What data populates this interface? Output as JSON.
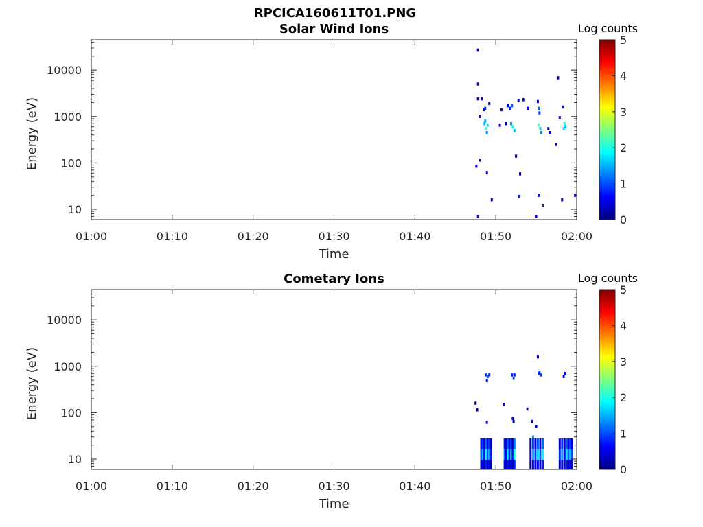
{
  "figure": {
    "title": "RPCICA160611T01.PNG"
  },
  "chart_data": [
    {
      "type": "heatmap",
      "title": "Solar Wind Ions",
      "xlabel": "Time",
      "ylabel": "Energy (eV)",
      "x_ticks": [
        "01:00",
        "01:10",
        "01:20",
        "01:30",
        "01:40",
        "01:50",
        "02:00"
      ],
      "x_range_min": [
        0,
        60
      ],
      "y_scale": "log",
      "y_ticks": [
        "10",
        "100",
        "1000",
        "10000"
      ],
      "y_range": [
        6,
        45000
      ],
      "colorbar": {
        "label": "Log counts",
        "ticks": [
          "0",
          "1",
          "2",
          "3",
          "4",
          "5"
        ],
        "range": [
          0,
          5
        ],
        "colormap": "jet"
      },
      "cells": [
        [
          47.8,
          27000,
          0.3
        ],
        [
          47.8,
          5000,
          0.3
        ],
        [
          47.8,
          2400,
          0.3
        ],
        [
          48.3,
          2400,
          0.3
        ],
        [
          49.2,
          1900,
          0.3
        ],
        [
          48.0,
          1000,
          0.5
        ],
        [
          48.5,
          1400,
          0.6
        ],
        [
          48.7,
          1500,
          0.8
        ],
        [
          48.6,
          700,
          1.6
        ],
        [
          48.8,
          550,
          2.0
        ],
        [
          49.0,
          650,
          1.8
        ],
        [
          48.9,
          450,
          1.2
        ],
        [
          48.7,
          800,
          1.4
        ],
        [
          50.5,
          650,
          0.4
        ],
        [
          50.7,
          1400,
          0.5
        ],
        [
          51.3,
          700,
          0.3
        ],
        [
          51.5,
          1700,
          0.6
        ],
        [
          51.8,
          1500,
          0.8
        ],
        [
          52.0,
          1700,
          1.0
        ],
        [
          52.1,
          600,
          1.9
        ],
        [
          52.3,
          500,
          1.6
        ],
        [
          51.9,
          700,
          1.4
        ],
        [
          52.8,
          2200,
          0.3
        ],
        [
          53.4,
          2300,
          0.3
        ],
        [
          54.0,
          1500,
          0.4
        ],
        [
          55.2,
          2100,
          0.5
        ],
        [
          55.3,
          1500,
          1.1
        ],
        [
          55.4,
          1200,
          1.0
        ],
        [
          55.3,
          650,
          2.2
        ],
        [
          55.5,
          550,
          1.7
        ],
        [
          55.6,
          450,
          1.3
        ],
        [
          56.5,
          550,
          0.4
        ],
        [
          56.7,
          450,
          0.5
        ],
        [
          57.7,
          6800,
          0.3
        ],
        [
          57.9,
          950,
          0.6
        ],
        [
          58.3,
          1600,
          0.7
        ],
        [
          58.5,
          700,
          2.0
        ],
        [
          58.4,
          550,
          1.7
        ],
        [
          58.6,
          600,
          1.5
        ],
        [
          57.5,
          250,
          0.3
        ],
        [
          47.6,
          85,
          0.4
        ],
        [
          48.0,
          115,
          0.3
        ],
        [
          48.9,
          62,
          0.3
        ],
        [
          52.5,
          140,
          0.3
        ],
        [
          53.0,
          58,
          0.3
        ],
        [
          49.5,
          16,
          0.6
        ],
        [
          52.9,
          19,
          0.8
        ],
        [
          55.3,
          20,
          0.7
        ],
        [
          55.8,
          12,
          0.8
        ],
        [
          58.2,
          16,
          0.6
        ],
        [
          59.8,
          20,
          0.5
        ],
        [
          47.8,
          7,
          0.7
        ],
        [
          55.0,
          7,
          0.6
        ]
      ]
    },
    {
      "type": "heatmap",
      "title": "Cometary Ions",
      "xlabel": "Time",
      "ylabel": "Energy (eV)",
      "x_ticks": [
        "01:00",
        "01:10",
        "01:20",
        "01:30",
        "01:40",
        "01:50",
        "02:00"
      ],
      "x_range_min": [
        0,
        60
      ],
      "y_scale": "log",
      "y_ticks": [
        "10",
        "100",
        "1000",
        "10000"
      ],
      "y_range": [
        6,
        45000
      ],
      "colorbar": {
        "label": "Log counts",
        "ticks": [
          "0",
          "1",
          "2",
          "3",
          "4",
          "5"
        ],
        "range": [
          0,
          5
        ],
        "colormap": "jet"
      },
      "cells": [
        [
          48.8,
          650,
          0.9
        ],
        [
          49.0,
          600,
          1.1
        ],
        [
          49.2,
          650,
          0.8
        ],
        [
          48.9,
          500,
          0.7
        ],
        [
          52.0,
          650,
          0.8
        ],
        [
          52.2,
          550,
          1.0
        ],
        [
          52.3,
          650,
          0.7
        ],
        [
          55.2,
          1600,
          0.3
        ],
        [
          55.4,
          750,
          1.0
        ],
        [
          55.6,
          650,
          0.9
        ],
        [
          55.3,
          700,
          0.8
        ],
        [
          58.6,
          700,
          0.6
        ],
        [
          58.4,
          600,
          0.5
        ],
        [
          47.5,
          160,
          0.3
        ],
        [
          47.7,
          115,
          0.3
        ],
        [
          48.9,
          62,
          0.3
        ],
        [
          51.0,
          150,
          0.4
        ],
        [
          52.1,
          75,
          0.3
        ],
        [
          52.2,
          65,
          0.3
        ],
        [
          53.9,
          120,
          0.3
        ],
        [
          54.5,
          65,
          0.3
        ],
        [
          55.0,
          50,
          0.6
        ],
        [
          54.6,
          30,
          1.4
        ]
      ],
      "columns": [
        [
          48.2,
          0.9
        ],
        [
          48.4,
          1.6
        ],
        [
          48.6,
          0.5
        ],
        [
          48.8,
          1.9
        ],
        [
          49.0,
          1.0
        ],
        [
          49.2,
          1.7
        ],
        [
          49.4,
          0.7
        ],
        [
          51.1,
          1.2
        ],
        [
          51.3,
          0.6
        ],
        [
          51.5,
          1.8
        ],
        [
          51.7,
          0.8
        ],
        [
          51.9,
          1.6
        ],
        [
          52.1,
          0.5
        ],
        [
          52.3,
          2.0
        ],
        [
          54.3,
          0.6
        ],
        [
          54.6,
          1.5
        ],
        [
          54.9,
          0.9
        ],
        [
          55.2,
          1.7
        ],
        [
          55.5,
          1.0
        ],
        [
          55.8,
          1.9
        ],
        [
          57.9,
          0.8
        ],
        [
          58.2,
          1.4
        ],
        [
          58.5,
          0.6
        ],
        [
          58.8,
          1.8
        ],
        [
          59.0,
          1.1
        ],
        [
          59.2,
          1.6
        ],
        [
          59.4,
          1.0
        ]
      ]
    }
  ]
}
